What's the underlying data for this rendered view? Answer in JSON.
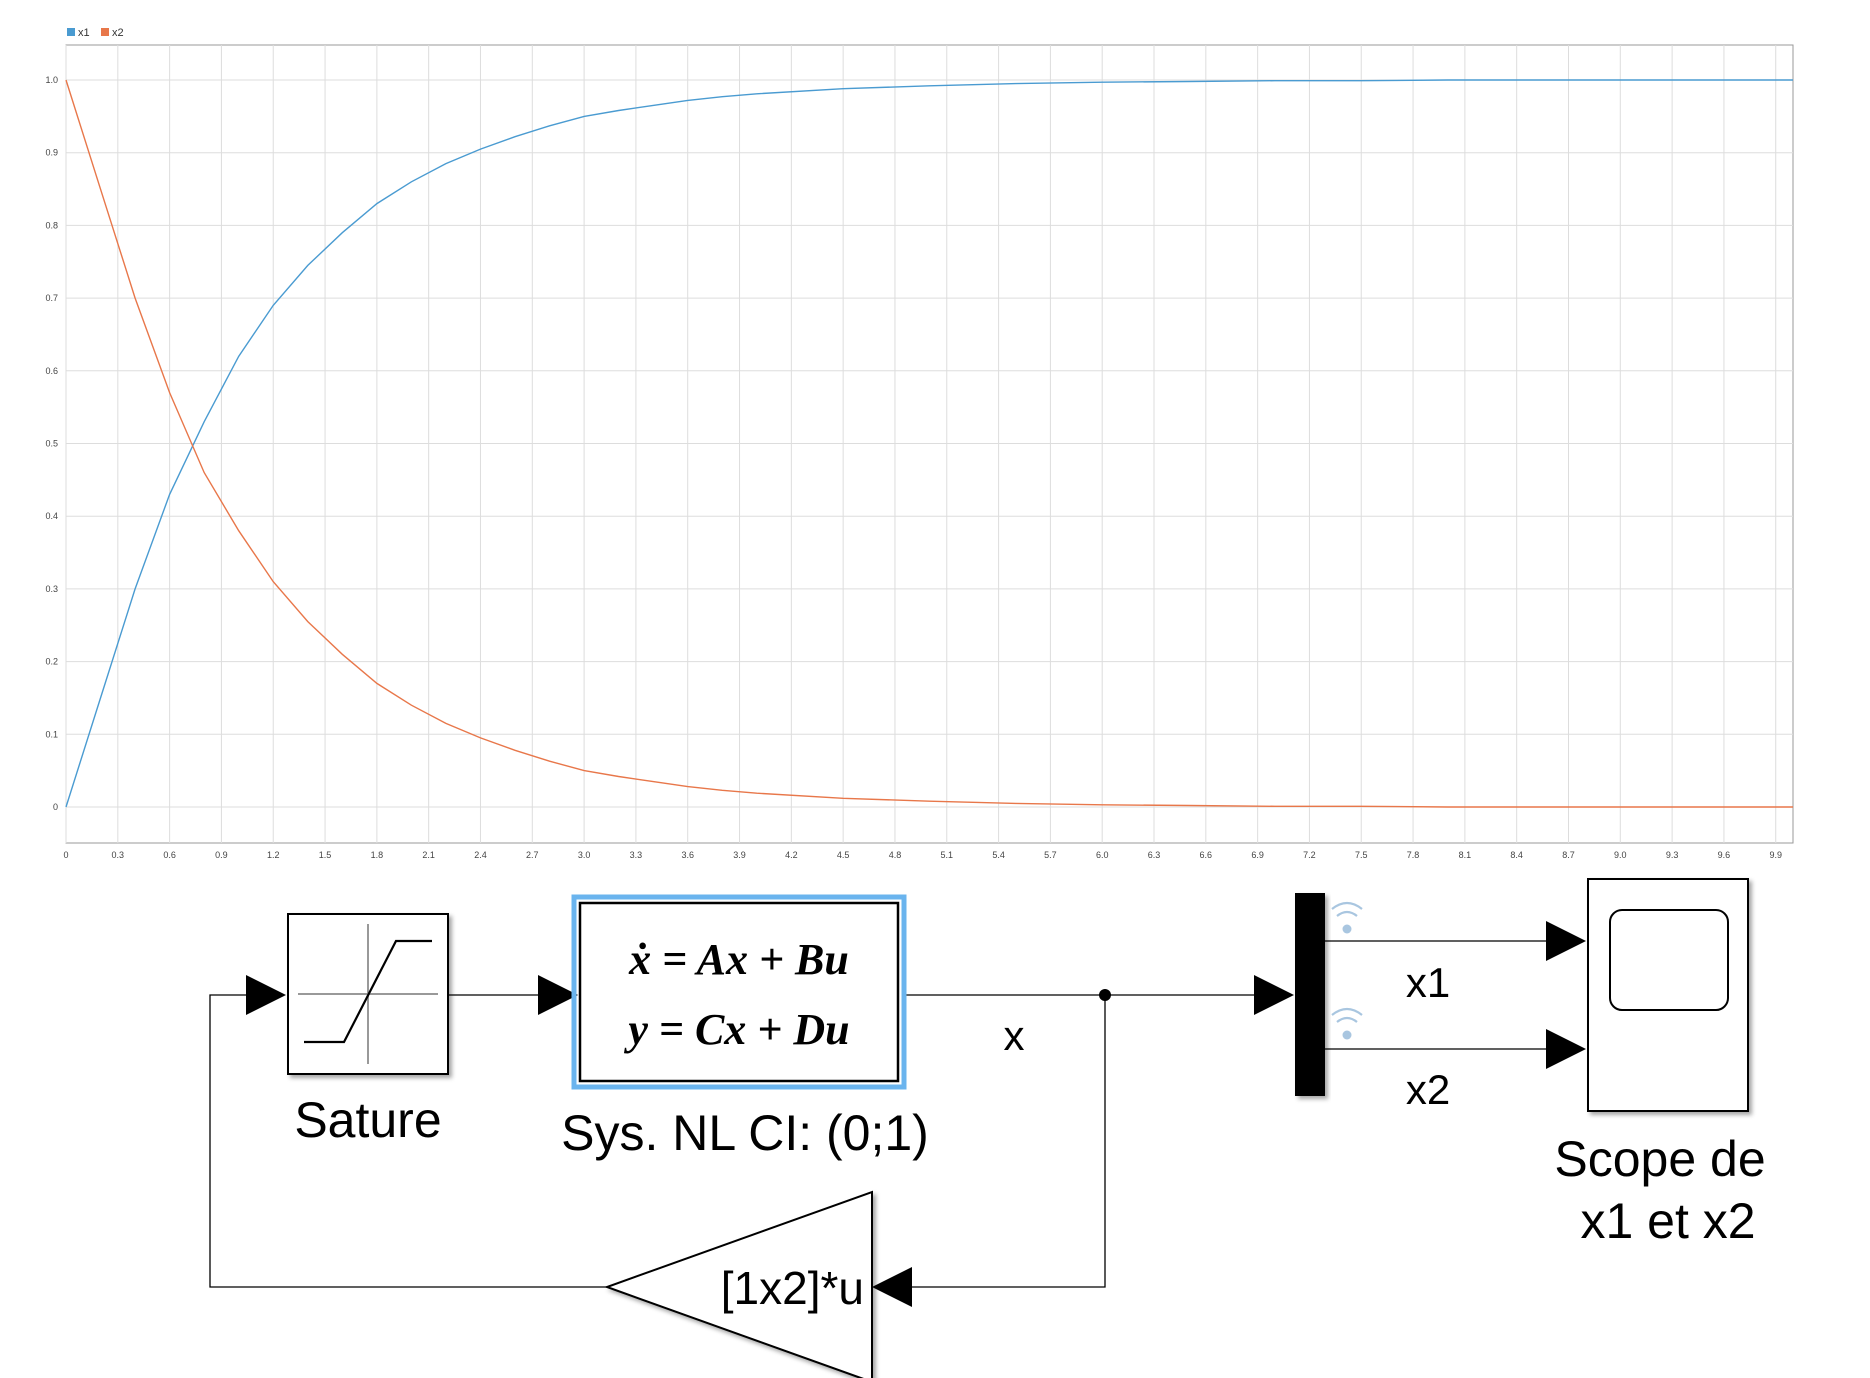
{
  "chart_data": {
    "type": "line",
    "legend": {
      "placement": "top-left",
      "entries": [
        "x1",
        "x2"
      ]
    },
    "grid": true,
    "xlim": [
      0,
      10
    ],
    "ylim": [
      0,
      1.05
    ],
    "x_ticks": [
      "0",
      "0.3",
      "0.6",
      "0.9",
      "1.2",
      "1.5",
      "1.8",
      "2.1",
      "2.4",
      "2.7",
      "3.0",
      "3.3",
      "3.6",
      "3.9",
      "4.2",
      "4.5",
      "4.8",
      "5.1",
      "5.4",
      "5.7",
      "6.0",
      "6.3",
      "6.6",
      "6.9",
      "7.2",
      "7.5",
      "7.8",
      "8.1",
      "8.4",
      "8.7",
      "9.0",
      "9.3",
      "9.6",
      "9.9"
    ],
    "y_ticks": [
      "0",
      "0.1",
      "0.2",
      "0.3",
      "0.4",
      "0.5",
      "0.6",
      "0.7",
      "0.8",
      "0.9",
      "1.0"
    ],
    "x": [
      0,
      0.2,
      0.4,
      0.6,
      0.8,
      1.0,
      1.2,
      1.4,
      1.6,
      1.8,
      2.0,
      2.2,
      2.4,
      2.6,
      2.8,
      3.0,
      3.2,
      3.4,
      3.6,
      3.8,
      4.0,
      4.5,
      5.0,
      5.5,
      6.0,
      6.5,
      7.0,
      7.5,
      8.0,
      8.5,
      9.0,
      9.5,
      10.0
    ],
    "series": [
      {
        "name": "x1",
        "color": "#4a9bd1",
        "values": [
          0,
          0.15,
          0.3,
          0.43,
          0.53,
          0.62,
          0.69,
          0.745,
          0.79,
          0.83,
          0.86,
          0.885,
          0.905,
          0.922,
          0.937,
          0.95,
          0.958,
          0.965,
          0.972,
          0.977,
          0.981,
          0.988,
          0.992,
          0.995,
          0.997,
          0.998,
          0.999,
          0.999,
          1.0,
          1.0,
          1.0,
          1.0,
          1.0
        ]
      },
      {
        "name": "x2",
        "color": "#e8774a",
        "values": [
          1.0,
          0.85,
          0.7,
          0.57,
          0.46,
          0.38,
          0.31,
          0.255,
          0.21,
          0.17,
          0.14,
          0.115,
          0.095,
          0.078,
          0.063,
          0.05,
          0.042,
          0.035,
          0.028,
          0.023,
          0.019,
          0.012,
          0.008,
          0.005,
          0.003,
          0.002,
          0.001,
          0.001,
          0,
          0,
          0,
          0,
          0
        ]
      }
    ]
  },
  "diagram": {
    "saturation_label": "Sature",
    "ss_eq1": "ẋ = Ax + Bu",
    "ss_eq2": "y = Cx + Du",
    "ss_label": "Sys. NL CI: (0;1)",
    "signal_x": "x",
    "signal_x1": "x1",
    "signal_x2": "x2",
    "gain_text": "[1x2]*u",
    "scope_label_line1": "Scope de",
    "scope_label_line2": "x1 et x2",
    "accent_color": "#6ab4ee"
  }
}
